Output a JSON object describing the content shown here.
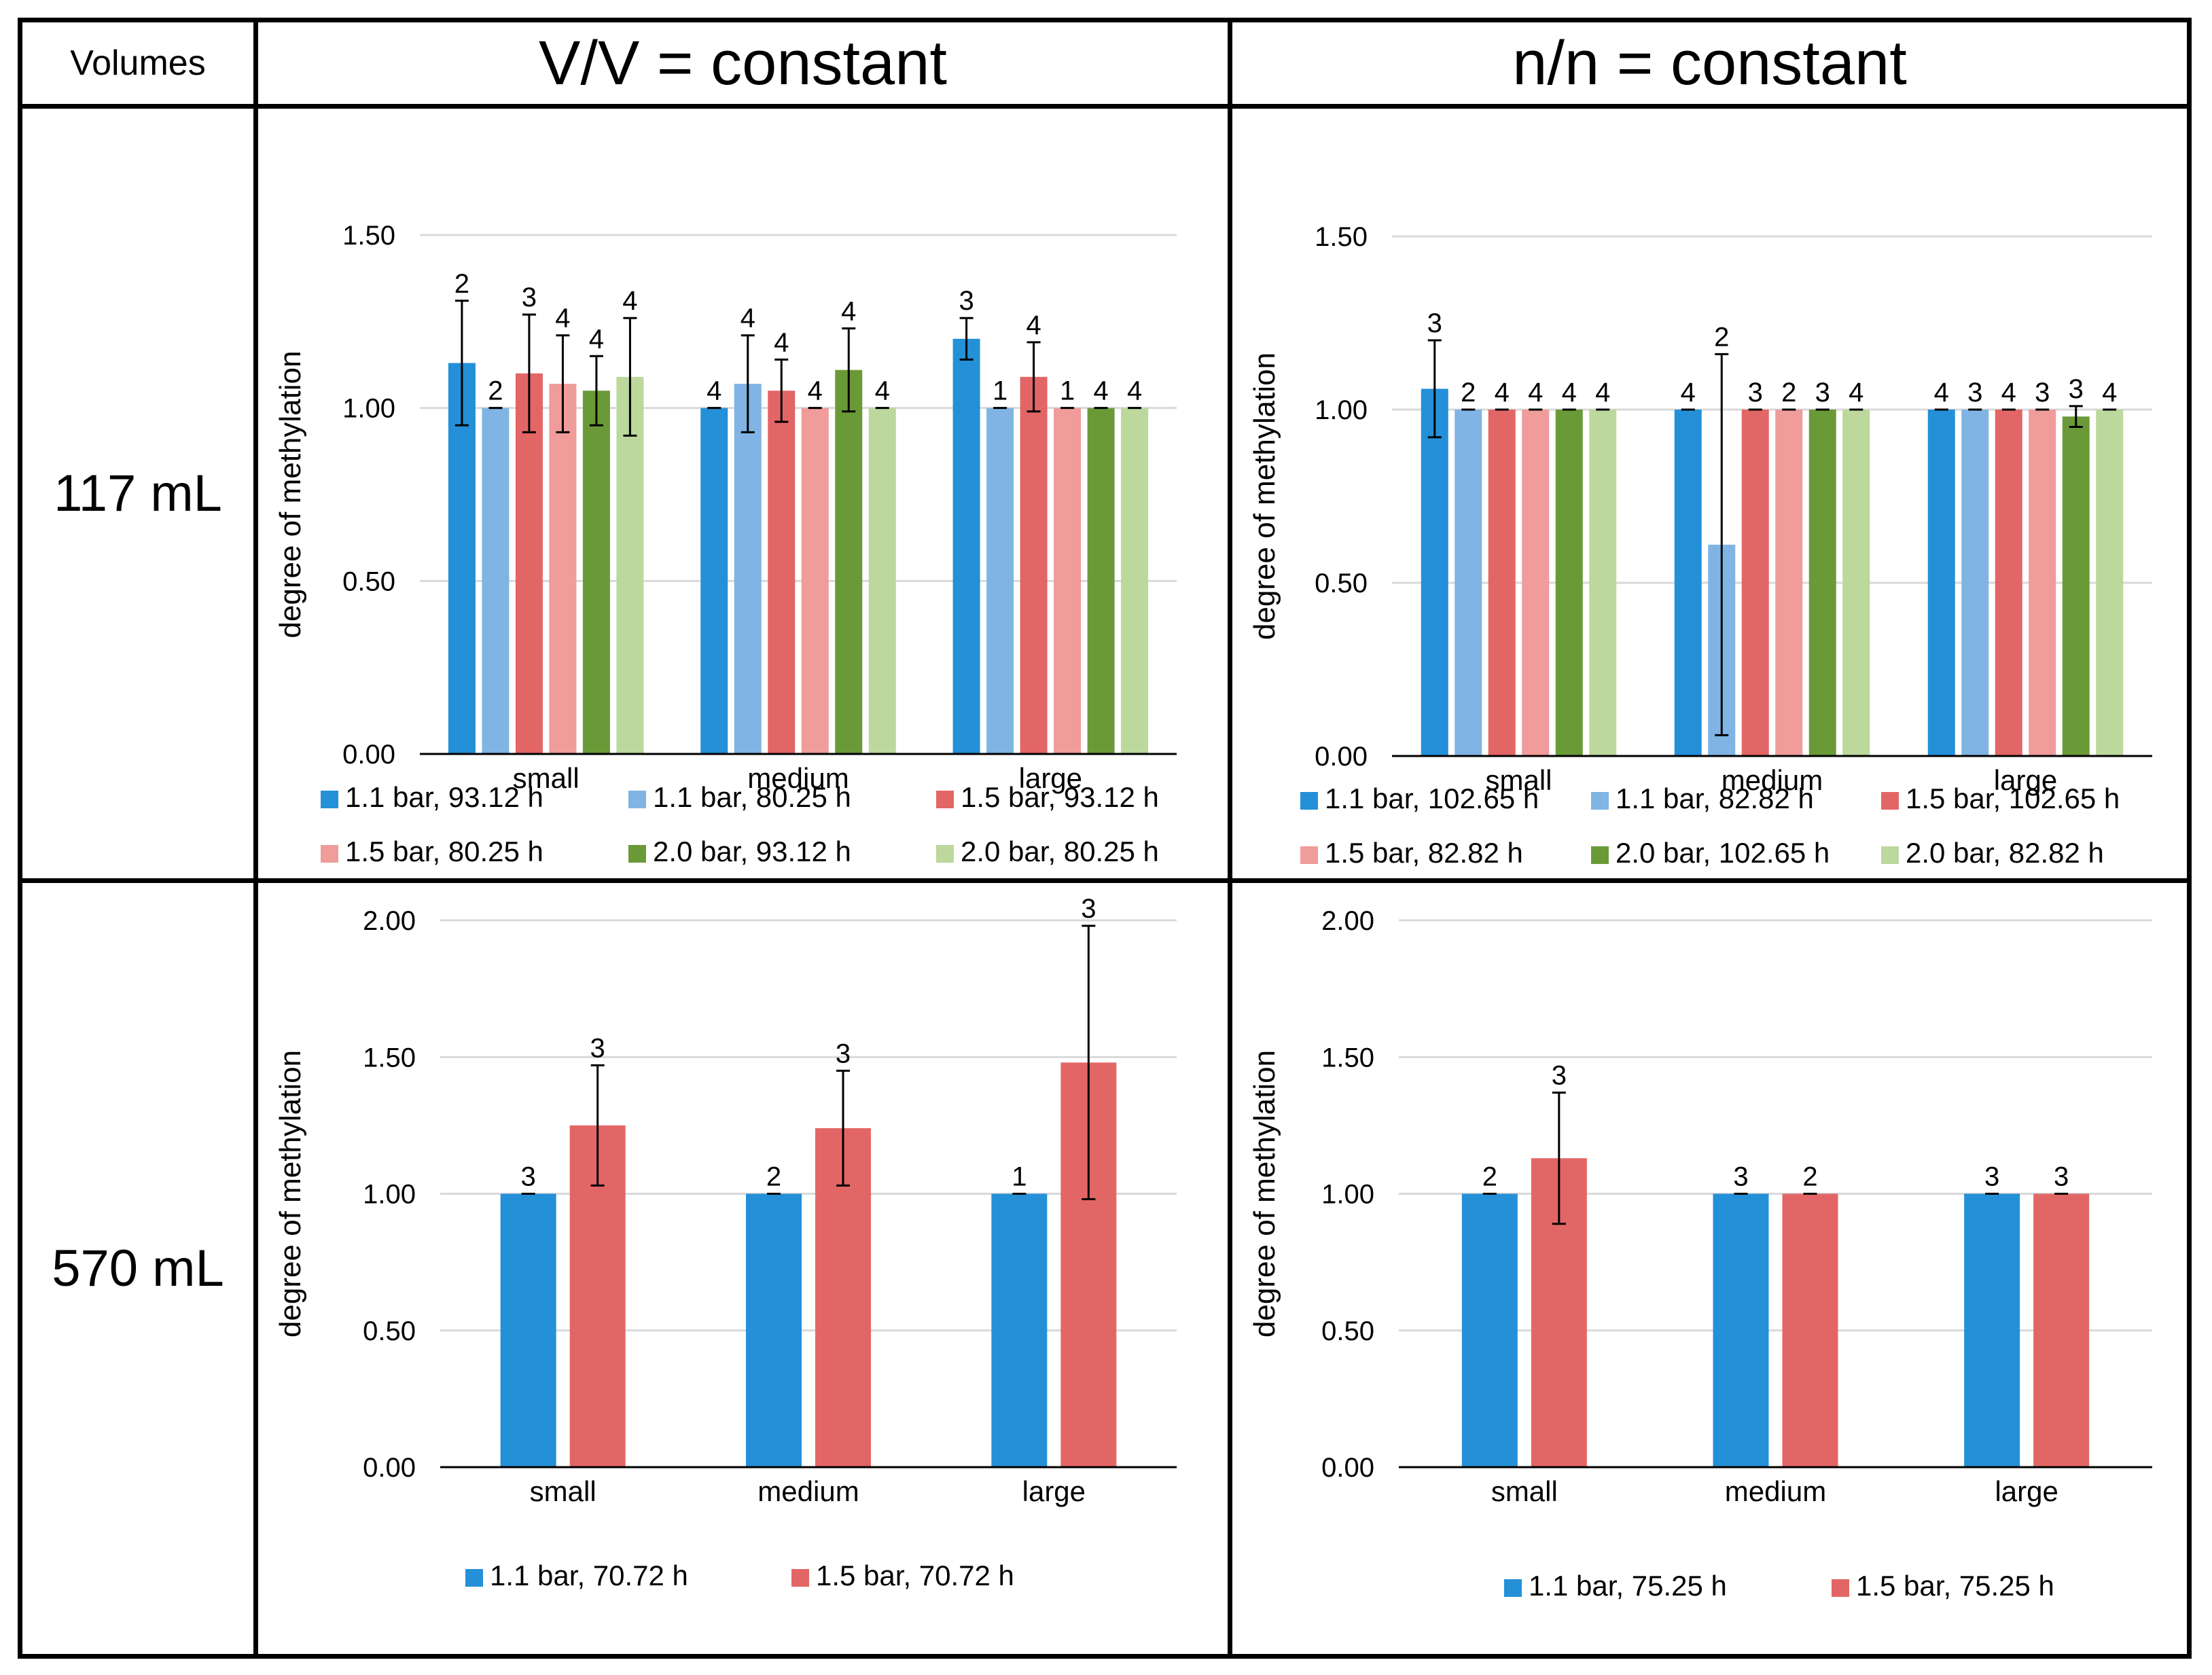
{
  "table": {
    "corner_label": "Volumes",
    "columns": [
      "V/V = constant",
      "n/n = constant"
    ],
    "rows": [
      "117 mL",
      "570 mL"
    ]
  },
  "colors": {
    "blue_dark": "#2490d8",
    "blue_light": "#80b4e4",
    "red_dark": "#e36666",
    "red_light": "#ef9c9a",
    "green_dark": "#6a9a38",
    "green_light": "#bcd89c",
    "grid": "#d9d9d9",
    "axis": "#000000"
  },
  "chart_data": [
    {
      "id": "vv-117",
      "type": "bar",
      "ylabel": "degree of methylation",
      "ylim": [
        0,
        1.5
      ],
      "yticks": [
        "0.00",
        "0.50",
        "1.00",
        "1.50"
      ],
      "categories": [
        "small",
        "medium",
        "large"
      ],
      "series": [
        {
          "name": "1.1 bar, 93.12 h",
          "color": "#2490d8",
          "values": [
            1.13,
            1.0,
            1.2
          ],
          "err": [
            0.18,
            0.0,
            0.06
          ],
          "n": [
            "2",
            "4",
            "3"
          ]
        },
        {
          "name": "1.1 bar, 80.25 h",
          "color": "#80b4e4",
          "values": [
            1.0,
            1.07,
            1.0
          ],
          "err": [
            0.0,
            0.14,
            0.0
          ],
          "n": [
            "2",
            "4",
            "1"
          ]
        },
        {
          "name": "1.5 bar, 93.12 h",
          "color": "#e36666",
          "values": [
            1.1,
            1.05,
            1.09
          ],
          "err": [
            0.17,
            0.09,
            0.1
          ],
          "n": [
            "3",
            "4",
            "4"
          ]
        },
        {
          "name": "1.5 bar, 80.25 h",
          "color": "#ef9c9a",
          "values": [
            1.07,
            1.0,
            1.0
          ],
          "err": [
            0.14,
            0.0,
            0.0
          ],
          "n": [
            "4",
            "4",
            "1"
          ]
        },
        {
          "name": "2.0 bar, 93.12 h",
          "color": "#6a9a38",
          "values": [
            1.05,
            1.11,
            1.0
          ],
          "err": [
            0.1,
            0.12,
            0.0
          ],
          "n": [
            "4",
            "4",
            "4"
          ]
        },
        {
          "name": "2.0 bar, 80.25 h",
          "color": "#bcd89c",
          "values": [
            1.09,
            1.0,
            1.0
          ],
          "err": [
            0.17,
            0.0,
            0.0
          ],
          "n": [
            "4",
            "4",
            "4"
          ]
        }
      ],
      "legend": "bottom"
    },
    {
      "id": "nn-117",
      "type": "bar",
      "ylabel": "degree of methylation",
      "ylim": [
        0,
        1.5
      ],
      "yticks": [
        "0.00",
        "0.50",
        "1.00",
        "1.50"
      ],
      "categories": [
        "small",
        "medium",
        "large"
      ],
      "series": [
        {
          "name": "1.1 bar, 102.65 h",
          "color": "#2490d8",
          "values": [
            1.06,
            1.0,
            1.0
          ],
          "err": [
            0.14,
            0.0,
            0.0
          ],
          "n": [
            "3",
            "4",
            "4"
          ]
        },
        {
          "name": "1.1 bar, 82.82 h",
          "color": "#80b4e4",
          "values": [
            1.0,
            0.61,
            1.0
          ],
          "err": [
            0.0,
            0.55,
            0.0
          ],
          "n": [
            "2",
            "2",
            "3"
          ]
        },
        {
          "name": "1.5 bar, 102.65 h",
          "color": "#e36666",
          "values": [
            1.0,
            1.0,
            1.0
          ],
          "err": [
            0.0,
            0.0,
            0.0
          ],
          "n": [
            "4",
            "3",
            "4"
          ]
        },
        {
          "name": "1.5 bar, 82.82 h",
          "color": "#ef9c9a",
          "values": [
            1.0,
            1.0,
            1.0
          ],
          "err": [
            0.0,
            0.0,
            0.0
          ],
          "n": [
            "4",
            "2",
            "3"
          ]
        },
        {
          "name": "2.0 bar, 102.65 h",
          "color": "#6a9a38",
          "values": [
            1.0,
            1.0,
            0.98
          ],
          "err": [
            0.0,
            0.0,
            0.03
          ],
          "n": [
            "4",
            "3",
            "3"
          ]
        },
        {
          "name": "2.0 bar, 82.82 h",
          "color": "#bcd89c",
          "values": [
            1.0,
            1.0,
            1.0
          ],
          "err": [
            0.0,
            0.0,
            0.0
          ],
          "n": [
            "4",
            "4",
            "4"
          ]
        }
      ],
      "legend": "bottom"
    },
    {
      "id": "vv-570",
      "type": "bar",
      "ylabel": "degree of methylation",
      "ylim": [
        0,
        2.0
      ],
      "yticks": [
        "0.00",
        "0.50",
        "1.00",
        "1.50",
        "2.00"
      ],
      "categories": [
        "small",
        "medium",
        "large"
      ],
      "series": [
        {
          "name": "1.1 bar, 70.72 h",
          "color": "#2490d8",
          "values": [
            1.0,
            1.0,
            1.0
          ],
          "err": [
            0.0,
            0.0,
            0.0
          ],
          "n": [
            "3",
            "2",
            "1"
          ]
        },
        {
          "name": "1.5 bar, 70.72 h",
          "color": "#e36666",
          "values": [
            1.25,
            1.24,
            1.48
          ],
          "err": [
            0.22,
            0.21,
            0.5
          ],
          "n": [
            "3",
            "3",
            "3"
          ]
        }
      ],
      "legend": "bottom"
    },
    {
      "id": "nn-570",
      "type": "bar",
      "ylabel": "degree of methylation",
      "ylim": [
        0,
        2.0
      ],
      "yticks": [
        "0.00",
        "0.50",
        "1.00",
        "1.50",
        "2.00"
      ],
      "categories": [
        "small",
        "medium",
        "large"
      ],
      "series": [
        {
          "name": "1.1 bar, 75.25 h",
          "color": "#2490d8",
          "values": [
            1.0,
            1.0,
            1.0
          ],
          "err": [
            0.0,
            0.0,
            0.0
          ],
          "n": [
            "2",
            "3",
            "3"
          ]
        },
        {
          "name": "1.5 bar, 75.25 h",
          "color": "#e36666",
          "values": [
            1.13,
            1.0,
            1.0
          ],
          "err": [
            0.24,
            0.0,
            0.0
          ],
          "n": [
            "3",
            "2",
            "3"
          ]
        }
      ],
      "legend": "bottom"
    }
  ]
}
